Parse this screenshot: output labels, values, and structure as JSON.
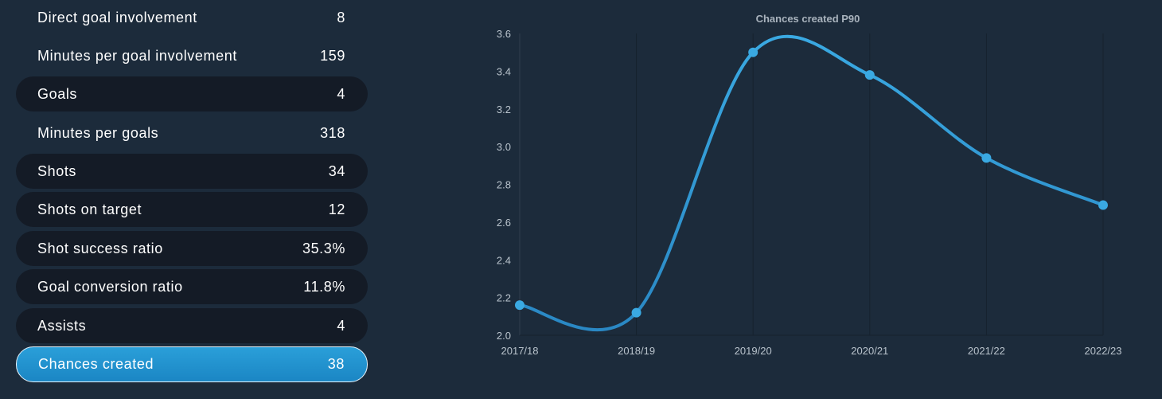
{
  "stats": [
    {
      "label": "Direct goal involvement",
      "value": "8",
      "style": "plain"
    },
    {
      "label": "Minutes per goal involvement",
      "value": "159",
      "style": "plain"
    },
    {
      "label": "Goals",
      "value": "4",
      "style": "dark"
    },
    {
      "label": "Minutes per goals",
      "value": "318",
      "style": "plain"
    },
    {
      "label": "Shots",
      "value": "34",
      "style": "dark"
    },
    {
      "label": "Shots on target",
      "value": "12",
      "style": "dark"
    },
    {
      "label": "Shot success ratio",
      "value": "35.3%",
      "style": "dark"
    },
    {
      "label": "Goal conversion ratio",
      "value": "11.8%",
      "style": "dark"
    },
    {
      "label": "Assists",
      "value": "4",
      "style": "dark"
    },
    {
      "label": "Chances created",
      "value": "38",
      "style": "active"
    }
  ],
  "colors": {
    "background": "#1c2b3b",
    "row_dark": "#141b26",
    "active_row": "#1f91cf",
    "line": "#3aa9e2",
    "line_dark": "#2a88c4",
    "point": "#3aa9e2",
    "axis_text": "#b9c3cc",
    "grid": "#16222e"
  },
  "chart_data": {
    "type": "line",
    "title": "Chances created P90",
    "xlabel": "",
    "ylabel": "",
    "categories": [
      "2017/18",
      "2018/19",
      "2019/20",
      "2020/21",
      "2021/22",
      "2022/23"
    ],
    "series": [
      {
        "values": [
          2.16,
          2.12,
          3.5,
          3.38,
          2.94,
          2.69
        ]
      }
    ],
    "ylim": [
      2.0,
      3.6
    ],
    "yticks": [
      "2.0",
      "2.2",
      "2.4",
      "2.6",
      "2.8",
      "3.0",
      "3.2",
      "3.4",
      "3.6"
    ],
    "smooth": true,
    "grid": "vertical",
    "legend": "none"
  }
}
